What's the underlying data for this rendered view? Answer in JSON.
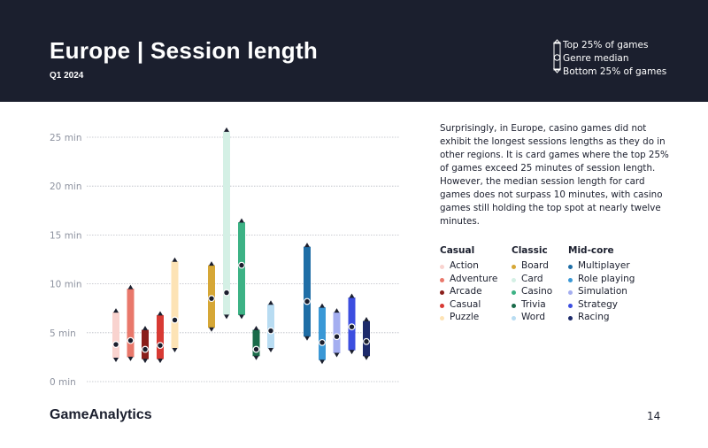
{
  "header": {
    "title": "Europe | Session length",
    "subtitle": "Q1 2024",
    "legend": {
      "top": "Top 25% of games",
      "median": "Genre median",
      "bottom": "Bottom 25% of games"
    }
  },
  "description": "Surprisingly, in Europe, casino games did not exhibit the longest sessions lengths as they do in other regions. It is card games where the top 25% of games exceed 25 minutes of session length. However, the median session length for card games does not surpass 10 minutes, with casino games still holding the top spot at nearly twelve minutes.",
  "legend_groups": [
    {
      "name": "Casual",
      "items": [
        {
          "label": "Action",
          "color": "#f9d3cf"
        },
        {
          "label": "Adventure",
          "color": "#e9786b"
        },
        {
          "label": "Arcade",
          "color": "#8a1f1b"
        },
        {
          "label": "Casual",
          "color": "#d83a34"
        },
        {
          "label": "Puzzle",
          "color": "#fde3b5"
        }
      ]
    },
    {
      "name": "Classic",
      "items": [
        {
          "label": "Board",
          "color": "#d6a736"
        },
        {
          "label": "Card",
          "color": "#d4f0e5"
        },
        {
          "label": "Casino",
          "color": "#3db285"
        },
        {
          "label": "Trivia",
          "color": "#1a6b4a"
        },
        {
          "label": "Word",
          "color": "#b8dcf2"
        }
      ]
    },
    {
      "name": "Mid-core",
      "items": [
        {
          "label": "Multiplayer",
          "color": "#1f6ea6"
        },
        {
          "label": "Role playing",
          "color": "#3a98d6"
        },
        {
          "label": "Simulation",
          "color": "#a4aef0"
        },
        {
          "label": "Strategy",
          "color": "#3c4ee0"
        },
        {
          "label": "Racing",
          "color": "#1d2a6b"
        }
      ]
    }
  ],
  "chart_data": {
    "type": "range-bar",
    "y_unit": "min",
    "ylim": [
      0,
      25
    ],
    "yticks": [
      {
        "value": 0,
        "label": "0 min"
      },
      {
        "value": 5,
        "label": "5 min"
      },
      {
        "value": 10,
        "label": "10 min"
      },
      {
        "value": 15,
        "label": "15 min"
      },
      {
        "value": 20,
        "label": "20 min"
      },
      {
        "value": 25,
        "label": "25 min"
      }
    ],
    "series": [
      {
        "genre": "Action",
        "group": "Casual",
        "bottom": 2.4,
        "median": 3.8,
        "top": 7.1,
        "color": "#f9d3cf"
      },
      {
        "genre": "Adventure",
        "group": "Casual",
        "bottom": 2.5,
        "median": 4.2,
        "top": 9.5,
        "color": "#e9786b"
      },
      {
        "genre": "Arcade",
        "group": "Casual",
        "bottom": 2.3,
        "median": 3.3,
        "top": 5.3,
        "color": "#8a1f1b"
      },
      {
        "genre": "Casual",
        "group": "Casual",
        "bottom": 2.3,
        "median": 3.7,
        "top": 6.8,
        "color": "#d83a34"
      },
      {
        "genre": "Puzzle",
        "group": "Casual",
        "bottom": 3.4,
        "median": 6.3,
        "top": 12.3,
        "color": "#fde3b5"
      },
      {
        "genre": "Board",
        "group": "Classic",
        "bottom": 5.5,
        "median": 8.5,
        "top": 11.9,
        "color": "#d6a736"
      },
      {
        "genre": "Card",
        "group": "Classic",
        "bottom": 6.8,
        "median": 9.1,
        "top": 25.6,
        "color": "#d4f0e5"
      },
      {
        "genre": "Casino",
        "group": "Classic",
        "bottom": 6.8,
        "median": 11.9,
        "top": 16.3,
        "color": "#3db285"
      },
      {
        "genre": "Trivia",
        "group": "Classic",
        "bottom": 2.6,
        "median": 3.3,
        "top": 5.3,
        "color": "#1a6b4a"
      },
      {
        "genre": "Word",
        "group": "Classic",
        "bottom": 3.4,
        "median": 5.2,
        "top": 7.9,
        "color": "#b8dcf2"
      },
      {
        "genre": "Multiplayer",
        "group": "Mid-core",
        "bottom": 4.6,
        "median": 8.2,
        "top": 13.8,
        "color": "#1f6ea6"
      },
      {
        "genre": "Role playing",
        "group": "Mid-core",
        "bottom": 2.2,
        "median": 4.0,
        "top": 7.6,
        "color": "#3a98d6"
      },
      {
        "genre": "Simulation",
        "group": "Mid-core",
        "bottom": 2.9,
        "median": 4.6,
        "top": 7.1,
        "color": "#a4aef0"
      },
      {
        "genre": "Strategy",
        "group": "Mid-core",
        "bottom": 3.2,
        "median": 5.6,
        "top": 8.6,
        "color": "#3c4ee0"
      },
      {
        "genre": "Racing",
        "group": "Mid-core",
        "bottom": 2.6,
        "median": 4.1,
        "top": 6.2,
        "color": "#1d2a6b"
      }
    ]
  },
  "footer": {
    "logo": "GameAnalytics",
    "page_number": "14"
  }
}
